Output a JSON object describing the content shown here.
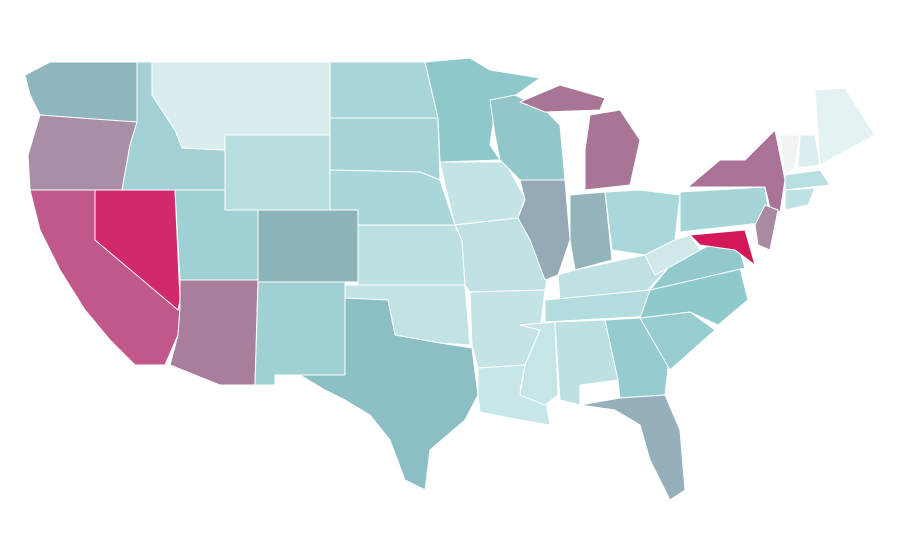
{
  "map": {
    "regions": [
      {
        "color": "#8fb5be"
      },
      {
        "color": "#a88ea6"
      },
      {
        "color": "#c0588b"
      },
      {
        "color": "#d1296a"
      },
      {
        "color": "#a2d1d5"
      },
      {
        "color": "#d9ecee"
      },
      {
        "color": "#b9dee0"
      },
      {
        "color": "#9fd0d3"
      },
      {
        "color": "#a97d9c"
      },
      {
        "color": "#8db4bb"
      },
      {
        "color": "#9fd0d2"
      },
      {
        "color": "#a8d5d7"
      },
      {
        "color": "#a6d3d6"
      },
      {
        "color": "#a9d6d9"
      },
      {
        "color": "#bde0e2"
      },
      {
        "color": "#c2e3e5"
      },
      {
        "color": "#8bbfc4"
      },
      {
        "color": "#8ec8cb"
      },
      {
        "color": "#c3e3e5"
      },
      {
        "color": "#c0e1e3"
      },
      {
        "color": "#c3e3e5"
      },
      {
        "color": "#c6e6e8"
      },
      {
        "color": "#92c6ca"
      },
      {
        "color": "#95a9b6"
      },
      {
        "color": "#a87596"
      },
      {
        "color": "#a87596"
      },
      {
        "color": "#93b4bb"
      },
      {
        "color": "#aad8da"
      },
      {
        "color": "#bfe1e3"
      },
      {
        "color": "#b3dcde"
      },
      {
        "color": "#c5e5e7"
      },
      {
        "color": "#bde0e2"
      },
      {
        "color": "#95cccf"
      },
      {
        "color": "#95b0ba"
      },
      {
        "color": "#97cdd0"
      },
      {
        "color": "#8ec9cc"
      },
      {
        "color": "#92c9cd"
      },
      {
        "color": "#cfe8ea"
      },
      {
        "color": "#a5d5d8"
      },
      {
        "color": "#ab7298"
      },
      {
        "color": "#d4165b"
      },
      {
        "color": "#a98aa2"
      },
      {
        "color": "#f0f4f5"
      },
      {
        "color": "#dcedf0"
      },
      {
        "color": "#e4f2f4"
      },
      {
        "color": "#b8dfe1"
      },
      {
        "color": "#bfe2e4"
      }
    ]
  }
}
